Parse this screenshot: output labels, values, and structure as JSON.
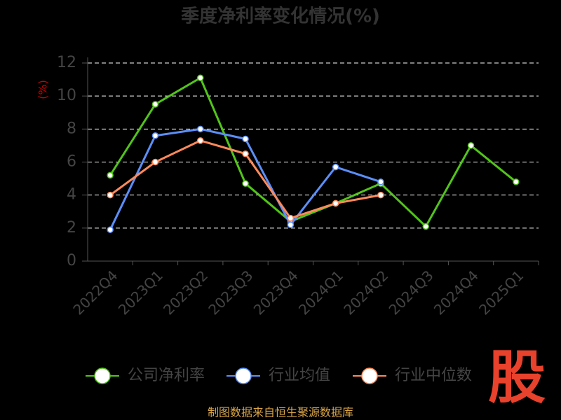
{
  "chart_data": {
    "type": "line",
    "title": "季度净利率变化情况(%)",
    "y_label": "(%)",
    "categories": [
      "2022Q4",
      "2023Q1",
      "2023Q2",
      "2023Q3",
      "2023Q4",
      "2024Q1",
      "2024Q2",
      "2024Q3",
      "2024Q4",
      "2025Q1"
    ],
    "series": [
      {
        "name": "公司净利率",
        "color": "#52c41a",
        "values": [
          5.2,
          9.5,
          11.1,
          4.7,
          2.4,
          3.5,
          4.7,
          2.1,
          7.0,
          4.8
        ]
      },
      {
        "name": "行业均值",
        "color": "#5b8ff9",
        "values": [
          1.9,
          7.6,
          8.0,
          7.4,
          2.2,
          5.7,
          4.8,
          null,
          null,
          null
        ]
      },
      {
        "name": "行业中位数",
        "color": "#ff8a5b",
        "values": [
          4.0,
          6.0,
          7.3,
          6.5,
          2.6,
          3.5,
          4.0,
          null,
          null,
          null
        ]
      }
    ],
    "ylim": [
      0,
      12
    ],
    "yticks": [
      0,
      2,
      4,
      6,
      8,
      10,
      12
    ],
    "grid": true,
    "source": "制图数据来自恒生聚源数据库",
    "logo": "股"
  }
}
